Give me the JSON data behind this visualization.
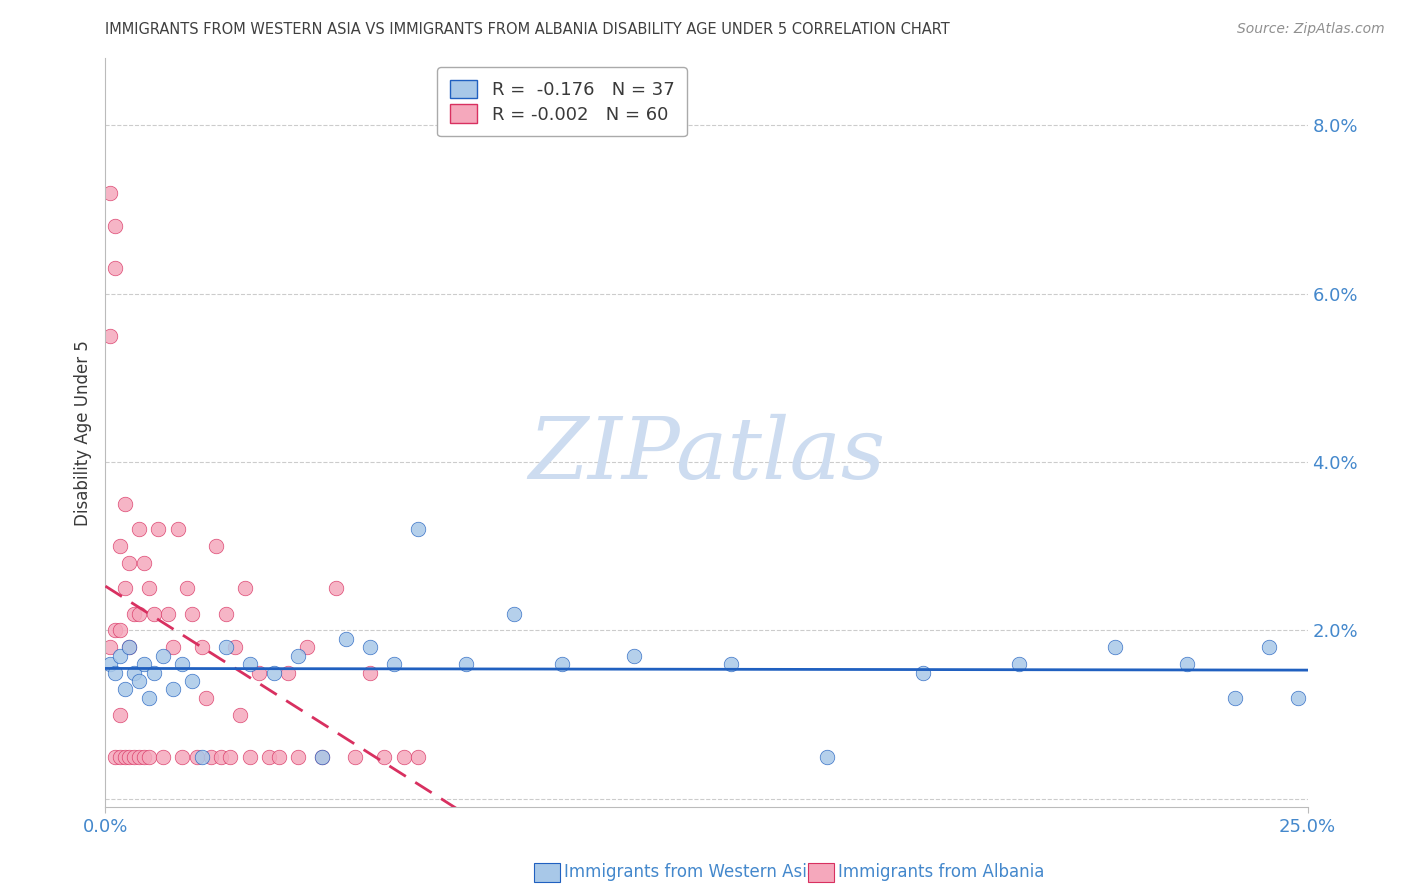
{
  "title": "IMMIGRANTS FROM WESTERN ASIA VS IMMIGRANTS FROM ALBANIA DISABILITY AGE UNDER 5 CORRELATION CHART",
  "source": "Source: ZipAtlas.com",
  "ylabel": "Disability Age Under 5",
  "xlim": [
    0.0,
    0.25
  ],
  "ylim": [
    -0.001,
    0.088
  ],
  "legend_blue_r": "-0.176",
  "legend_blue_n": "37",
  "legend_pink_r": "-0.002",
  "legend_pink_n": "60",
  "blue_color": "#a8c8e8",
  "pink_color": "#f5a8bc",
  "line_blue_color": "#2060c0",
  "line_pink_color": "#d83060",
  "title_color": "#404040",
  "source_color": "#909090",
  "axis_color": "#4488cc",
  "grid_color": "#cccccc",
  "watermark_color": "#cddcf0",
  "right_ytick_vals": [
    0.02,
    0.04,
    0.06,
    0.08
  ],
  "right_ytick_labels": [
    "2.0%",
    "4.0%",
    "6.0%",
    "8.0%"
  ],
  "blue_x": [
    0.001,
    0.002,
    0.003,
    0.004,
    0.005,
    0.006,
    0.007,
    0.008,
    0.009,
    0.01,
    0.012,
    0.014,
    0.016,
    0.018,
    0.02,
    0.025,
    0.03,
    0.035,
    0.04,
    0.045,
    0.05,
    0.055,
    0.06,
    0.065,
    0.075,
    0.085,
    0.095,
    0.11,
    0.13,
    0.15,
    0.17,
    0.19,
    0.21,
    0.225,
    0.235,
    0.242,
    0.248
  ],
  "blue_y": [
    0.016,
    0.015,
    0.017,
    0.013,
    0.018,
    0.015,
    0.014,
    0.016,
    0.012,
    0.015,
    0.017,
    0.013,
    0.016,
    0.014,
    0.005,
    0.018,
    0.016,
    0.015,
    0.017,
    0.005,
    0.019,
    0.018,
    0.016,
    0.032,
    0.016,
    0.022,
    0.016,
    0.017,
    0.016,
    0.005,
    0.015,
    0.016,
    0.018,
    0.016,
    0.012,
    0.018,
    0.012
  ],
  "pink_x": [
    0.001,
    0.001,
    0.001,
    0.002,
    0.002,
    0.002,
    0.002,
    0.003,
    0.003,
    0.003,
    0.003,
    0.004,
    0.004,
    0.004,
    0.005,
    0.005,
    0.005,
    0.006,
    0.006,
    0.007,
    0.007,
    0.007,
    0.008,
    0.008,
    0.009,
    0.009,
    0.01,
    0.011,
    0.012,
    0.013,
    0.014,
    0.015,
    0.016,
    0.017,
    0.018,
    0.019,
    0.02,
    0.021,
    0.022,
    0.023,
    0.024,
    0.025,
    0.026,
    0.027,
    0.028,
    0.029,
    0.03,
    0.032,
    0.034,
    0.036,
    0.038,
    0.04,
    0.042,
    0.045,
    0.048,
    0.052,
    0.055,
    0.058,
    0.062,
    0.065
  ],
  "pink_y": [
    0.072,
    0.055,
    0.018,
    0.063,
    0.068,
    0.02,
    0.005,
    0.03,
    0.02,
    0.01,
    0.005,
    0.035,
    0.025,
    0.005,
    0.028,
    0.018,
    0.005,
    0.022,
    0.005,
    0.032,
    0.022,
    0.005,
    0.028,
    0.005,
    0.025,
    0.005,
    0.022,
    0.032,
    0.005,
    0.022,
    0.018,
    0.032,
    0.005,
    0.025,
    0.022,
    0.005,
    0.018,
    0.012,
    0.005,
    0.03,
    0.005,
    0.022,
    0.005,
    0.018,
    0.01,
    0.025,
    0.005,
    0.015,
    0.005,
    0.005,
    0.015,
    0.005,
    0.018,
    0.005,
    0.025,
    0.005,
    0.015,
    0.005,
    0.005,
    0.005
  ]
}
